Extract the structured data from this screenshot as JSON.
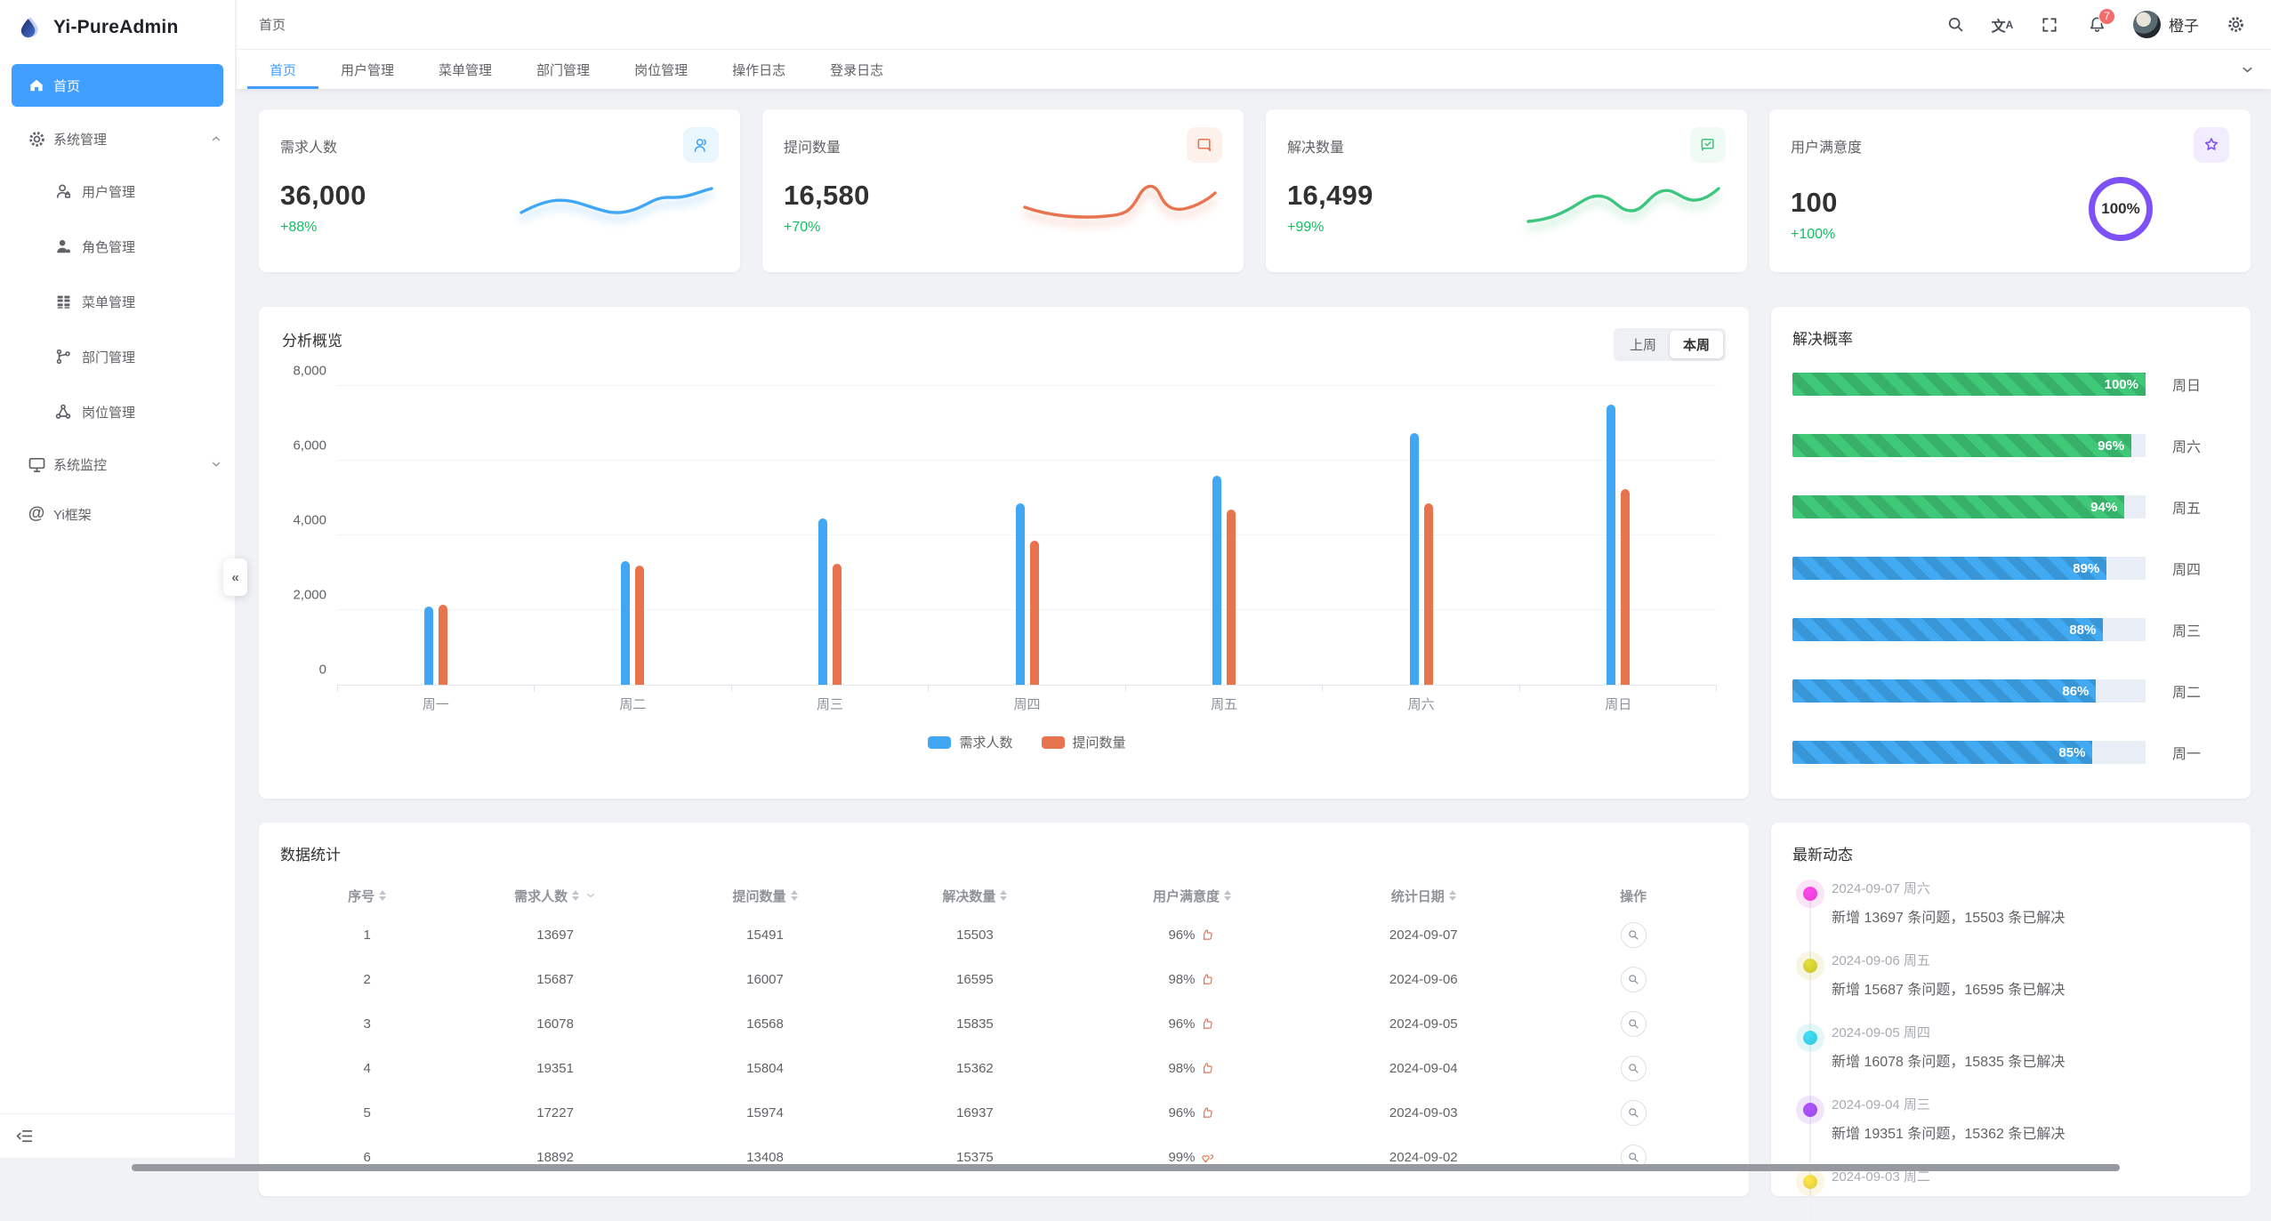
{
  "app": {
    "title": "Yi-PureAdmin"
  },
  "colors": {
    "primary": "#409eff",
    "success_green": "#0fbf61",
    "bar_blue": "#41a7f5",
    "bar_orange": "#e8744f",
    "progress_green": "#3ec878",
    "progress_blue": "#41aaf3",
    "purple": "#7d51f5",
    "badge_red": "#f56c6c"
  },
  "sidebar": {
    "logo_title": "Yi-PureAdmin",
    "items": [
      {
        "label": "首页",
        "icon": "home-icon",
        "active": true
      },
      {
        "label": "系统管理",
        "icon": "gear-icon",
        "expanded": true
      },
      {
        "label": "用户管理",
        "icon": "user-icon"
      },
      {
        "label": "角色管理",
        "icon": "role-icon"
      },
      {
        "label": "菜单管理",
        "icon": "menu-grid-icon"
      },
      {
        "label": "部门管理",
        "icon": "branch-icon"
      },
      {
        "label": "岗位管理",
        "icon": "molecule-icon"
      },
      {
        "label": "系统监控",
        "icon": "monitor-icon",
        "expanded": false
      },
      {
        "label": "Yi框架",
        "icon": "at-icon"
      }
    ],
    "collapse_glyph": "«"
  },
  "header": {
    "breadcrumb": "首页",
    "notification_count": "7",
    "user_name": "橙子"
  },
  "tabs": {
    "active_index": 0,
    "items": [
      "首页",
      "用户管理",
      "菜单管理",
      "部门管理",
      "岗位管理",
      "操作日志",
      "登录日志"
    ]
  },
  "stat_cards": [
    {
      "title": "需求人数",
      "value": "36,000",
      "delta": "+88%",
      "icon": "users-icon",
      "accent": "#41a7f5",
      "icon_bg": "#e9f6fe",
      "visual": "spark"
    },
    {
      "title": "提问数量",
      "value": "16,580",
      "delta": "+70%",
      "icon": "chat-bubble-icon",
      "accent": "#e8744f",
      "icon_bg": "#fdf1ec",
      "visual": "spark"
    },
    {
      "title": "解决数量",
      "value": "16,499",
      "delta": "+99%",
      "icon": "message-check-icon",
      "accent": "#3ec67e",
      "icon_bg": "#eefaf3",
      "visual": "spark"
    },
    {
      "title": "用户满意度",
      "value": "100",
      "delta": "+100%",
      "icon": "star-badge-icon",
      "accent": "#7d51f5",
      "icon_bg": "#f2edfe",
      "visual": "ring",
      "ring_label": "100%"
    }
  ],
  "chart_data": {
    "type": "bar",
    "title": "分析概览",
    "toggle": {
      "options": [
        "上周",
        "本周"
      ],
      "active_index": 1
    },
    "categories": [
      "周一",
      "周二",
      "周三",
      "周四",
      "周五",
      "周六",
      "周日"
    ],
    "series": [
      {
        "name": "需求人数",
        "color": "#41a7f5",
        "values": [
          2100,
          3300,
          4450,
          4850,
          5600,
          6750,
          7500
        ]
      },
      {
        "name": "提问数量",
        "color": "#e8744f",
        "values": [
          2150,
          3200,
          3250,
          3850,
          4700,
          4850,
          5250
        ]
      }
    ],
    "ylim": [
      0,
      8000
    ],
    "yticks": [
      "0",
      "2,000",
      "4,000",
      "6,000",
      "8,000"
    ],
    "grid": true,
    "legend_position": "bottom"
  },
  "solve_panel": {
    "title": "解决概率",
    "bars": [
      {
        "label": "周日",
        "value": 100,
        "color": "#3ec878"
      },
      {
        "label": "周六",
        "value": 96,
        "color": "#3ec878"
      },
      {
        "label": "周五",
        "value": 94,
        "color": "#3ec878"
      },
      {
        "label": "周四",
        "value": 89,
        "color": "#41aaf3"
      },
      {
        "label": "周三",
        "value": 88,
        "color": "#41aaf3"
      },
      {
        "label": "周二",
        "value": 86,
        "color": "#41aaf3"
      },
      {
        "label": "周一",
        "value": 85,
        "color": "#41aaf3"
      }
    ]
  },
  "table": {
    "title": "数据统计",
    "columns": [
      {
        "label": "序号",
        "sortable": true
      },
      {
        "label": "需求人数",
        "sortable": true,
        "filter": true
      },
      {
        "label": "提问数量",
        "sortable": true
      },
      {
        "label": "解决数量",
        "sortable": true
      },
      {
        "label": "用户满意度",
        "sortable": true
      },
      {
        "label": "统计日期",
        "sortable": true
      },
      {
        "label": "操作",
        "sortable": false
      }
    ],
    "rows": [
      {
        "index": "1",
        "demand": "13697",
        "questions": "15491",
        "solved": "15503",
        "satisfaction": "96%",
        "satisfaction_icon": "thumbs-up-icon",
        "date": "2024-09-07"
      },
      {
        "index": "2",
        "demand": "15687",
        "questions": "16007",
        "solved": "16595",
        "satisfaction": "98%",
        "satisfaction_icon": "thumbs-up-icon",
        "date": "2024-09-06"
      },
      {
        "index": "3",
        "demand": "16078",
        "questions": "16568",
        "solved": "15835",
        "satisfaction": "96%",
        "satisfaction_icon": "thumbs-up-icon",
        "date": "2024-09-05"
      },
      {
        "index": "4",
        "demand": "19351",
        "questions": "15804",
        "solved": "15362",
        "satisfaction": "98%",
        "satisfaction_icon": "thumbs-up-icon",
        "date": "2024-09-04"
      },
      {
        "index": "5",
        "demand": "17227",
        "questions": "15974",
        "solved": "16937",
        "satisfaction": "96%",
        "satisfaction_icon": "thumbs-up-icon",
        "date": "2024-09-03"
      },
      {
        "index": "6",
        "demand": "18892",
        "questions": "13408",
        "solved": "15375",
        "satisfaction": "99%",
        "satisfaction_icon": "hearts-icon",
        "date": "2024-09-02"
      }
    ]
  },
  "timeline": {
    "title": "最新动态",
    "items": [
      {
        "date": "2024-09-07 周六",
        "text": "新增 13697 条问题，15503 条已解决",
        "color": "#e23ecf"
      },
      {
        "date": "2024-09-06 周五",
        "text": "新增 15687 条问题，16595 条已解决",
        "color": "#c9c231"
      },
      {
        "date": "2024-09-05 周四",
        "text": "新增 16078 条问题，15835 条已解决",
        "color": "#38c4d8"
      },
      {
        "date": "2024-09-04 周三",
        "text": "新增 19351 条问题，15362 条已解决",
        "color": "#9a4ae4"
      },
      {
        "date": "2024-09-03 周二",
        "text": "",
        "color": "#e0c93f"
      }
    ]
  }
}
